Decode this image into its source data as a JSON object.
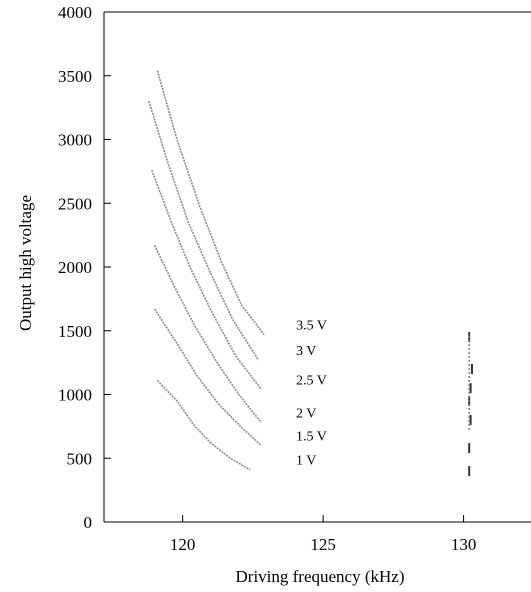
{
  "chart_data": {
    "type": "line",
    "title": "",
    "xlabel": "Driving frequency (kHz)",
    "ylabel": "Output high voltage",
    "xlim": [
      117.2,
      132.4
    ],
    "ylim": [
      0,
      4000
    ],
    "xticks": [
      120,
      125,
      130
    ],
    "yticks": [
      0,
      500,
      1000,
      1500,
      2000,
      2500,
      3000,
      3500,
      4000
    ],
    "grid": false,
    "legend": "none",
    "series": [
      {
        "name": "1 V",
        "x": [
          119.1,
          119.8,
          120.4,
          121.0,
          121.7,
          122.4
        ],
        "y": [
          1110,
          950,
          760,
          620,
          500,
          410
        ]
      },
      {
        "name": "1.5 V",
        "x": [
          119.0,
          119.8,
          120.5,
          121.3,
          122.1,
          122.8
        ],
        "y": [
          1670,
          1400,
          1150,
          920,
          740,
          600
        ]
      },
      {
        "name": "2 V",
        "x": [
          119.0,
          119.7,
          120.4,
          121.2,
          122.0,
          122.8
        ],
        "y": [
          2170,
          1850,
          1550,
          1260,
          1000,
          780
        ]
      },
      {
        "name": "2.5 V",
        "x": [
          118.9,
          119.6,
          120.3,
          121.1,
          121.9,
          122.8
        ],
        "y": [
          2760,
          2350,
          1980,
          1620,
          1300,
          1040
        ]
      },
      {
        "name": "3 V",
        "x": [
          118.8,
          119.5,
          120.2,
          121.0,
          121.8,
          122.7
        ],
        "y": [
          3300,
          2800,
          2350,
          1950,
          1580,
          1270
        ]
      },
      {
        "name": "3.5 V",
        "x": [
          119.1,
          119.8,
          120.6,
          121.4,
          122.1,
          122.9
        ],
        "y": [
          3540,
          3000,
          2480,
          2030,
          1700,
          1470
        ]
      }
    ],
    "scatter_near_130kHz": {
      "x": [
        130.2,
        130.2,
        130.25,
        130.2,
        130.25,
        130.3,
        130.2
      ],
      "y": [
        400,
        580,
        800,
        950,
        1050,
        1200,
        1450
      ]
    }
  }
}
